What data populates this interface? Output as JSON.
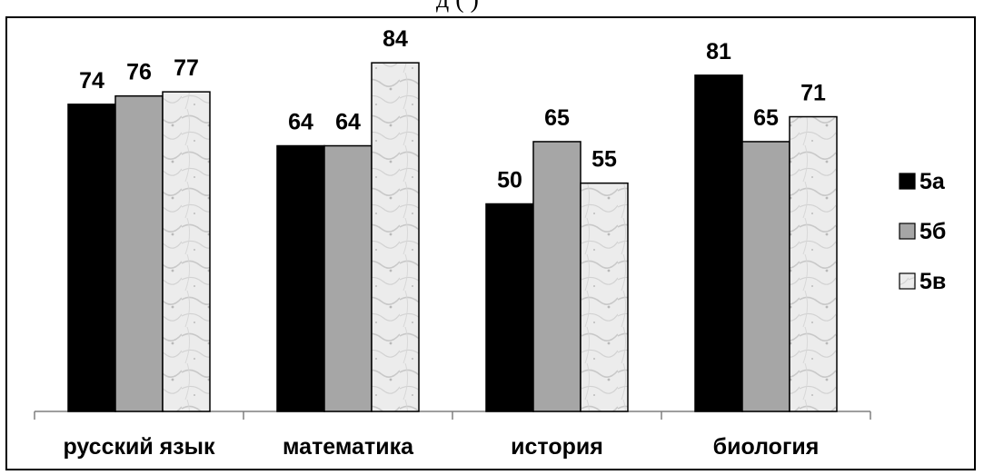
{
  "title_fragment": "д (  )",
  "chart_data": {
    "type": "bar",
    "categories": [
      "русский язык",
      "математика",
      "история",
      "биология"
    ],
    "series": [
      {
        "name": "5а",
        "values": [
          74,
          64,
          50,
          81
        ],
        "fill": "#000000"
      },
      {
        "name": "5б",
        "values": [
          76,
          64,
          65,
          65
        ],
        "fill": "#a6a6a6"
      },
      {
        "name": "5в",
        "values": [
          77,
          84,
          55,
          71
        ],
        "fill": "#ececec"
      }
    ],
    "ylim": [
      0,
      100
    ],
    "grid": false,
    "legend_position": "right"
  }
}
